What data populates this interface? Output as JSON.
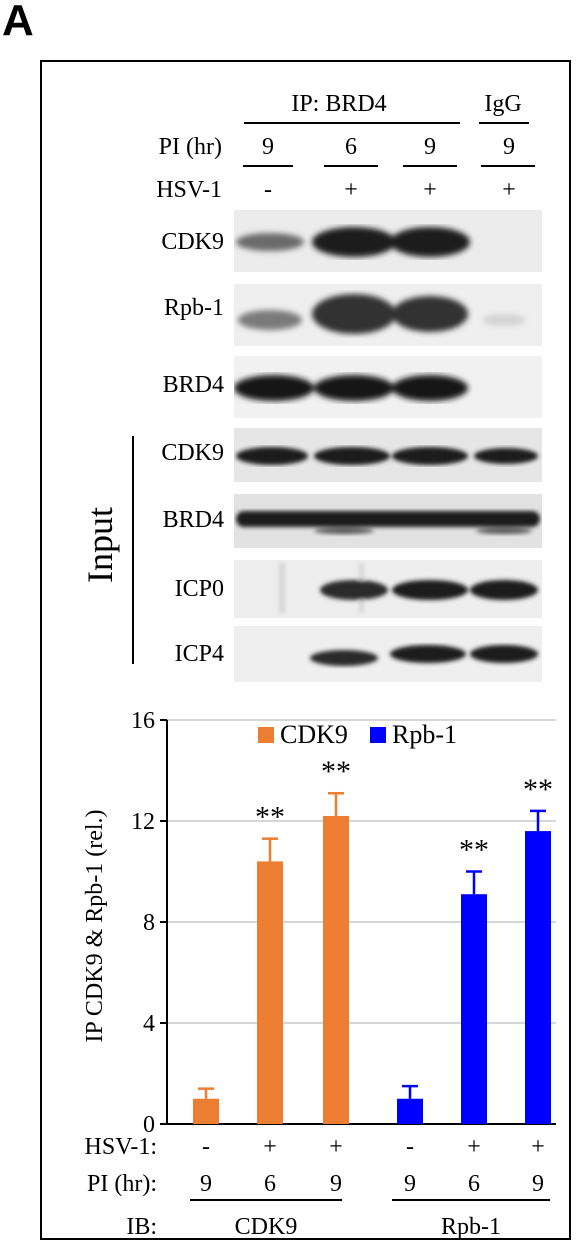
{
  "panel_label": "A",
  "header": {
    "ip_label": "IP: BRD4",
    "igg_label": "IgG",
    "pi_label": "PI (hr)",
    "pi_values": [
      "9",
      "6",
      "9",
      "9"
    ],
    "hsv_label": "HSV-1",
    "hsv_values": [
      "-",
      "+",
      "+",
      "+"
    ]
  },
  "blots": {
    "ip_rows": [
      "CDK9",
      "Rpb-1",
      "BRD4"
    ],
    "input_label": "Input",
    "input_rows": [
      "CDK9",
      "BRD4",
      "ICP0",
      "ICP4"
    ]
  },
  "chart_data": {
    "type": "bar",
    "ylabel": "IP CDK9 & Rpb-1 (rel.)",
    "ylim": [
      0,
      16
    ],
    "yticks": [
      0,
      4,
      8,
      12,
      16
    ],
    "grid": true,
    "legend_position": "top",
    "series": [
      {
        "name": "CDK9",
        "color": "#ED7D31",
        "values": [
          1.0,
          10.4,
          12.2
        ],
        "errors": [
          0.4,
          0.9,
          0.9
        ],
        "annotations": [
          "",
          "**",
          "**"
        ]
      },
      {
        "name": "Rpb-1",
        "color": "#0000FF",
        "values": [
          1.0,
          9.1,
          11.6
        ],
        "errors": [
          0.5,
          0.9,
          0.8
        ],
        "annotations": [
          "",
          "**",
          "**"
        ]
      }
    ],
    "x_rows": {
      "hsv_label": "HSV-1:",
      "hsv_values": [
        "-",
        "+",
        "+",
        "-",
        "+",
        "+"
      ],
      "pi_label": "PI (hr):",
      "pi_values": [
        "9",
        "6",
        "9",
        "9",
        "6",
        "9"
      ],
      "ib_label": "IB:",
      "ib_groups": [
        "CDK9",
        "Rpb-1"
      ]
    }
  }
}
